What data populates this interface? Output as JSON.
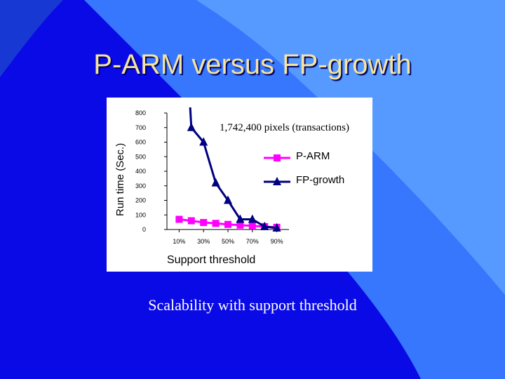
{
  "slide": {
    "title": "P-ARM versus FP-growth",
    "caption": "Scalability with support threshold",
    "background_color": "#0a0ae6"
  },
  "chart_data": {
    "type": "line",
    "annotation": "1,742,400 pixels (transactions)",
    "xlabel": "Support threshold",
    "ylabel": "Run time (Sec.)",
    "xlim": [
      0,
      100
    ],
    "ylim": [
      0,
      800
    ],
    "yticks": [
      0,
      100,
      200,
      300,
      400,
      500,
      600,
      700,
      800
    ],
    "xticks": [
      {
        "value": 10,
        "label": "10%"
      },
      {
        "value": 30,
        "label": "30%"
      },
      {
        "value": 50,
        "label": "50%"
      },
      {
        "value": 70,
        "label": "70%"
      },
      {
        "value": 90,
        "label": "90%"
      }
    ],
    "legend_position": "right",
    "series": [
      {
        "name": "P-ARM",
        "color": "#ff00ff",
        "marker": "square",
        "x": [
          10,
          20,
          30,
          40,
          50,
          60,
          70,
          80,
          90
        ],
        "y": [
          70,
          60,
          48,
          42,
          35,
          30,
          25,
          20,
          15
        ]
      },
      {
        "name": "FP-growth",
        "color": "#000080",
        "marker": "triangle",
        "x": [
          20,
          30,
          40,
          50,
          60,
          70,
          80,
          90
        ],
        "y": [
          700,
          600,
          320,
          200,
          70,
          70,
          20,
          10
        ]
      }
    ]
  }
}
